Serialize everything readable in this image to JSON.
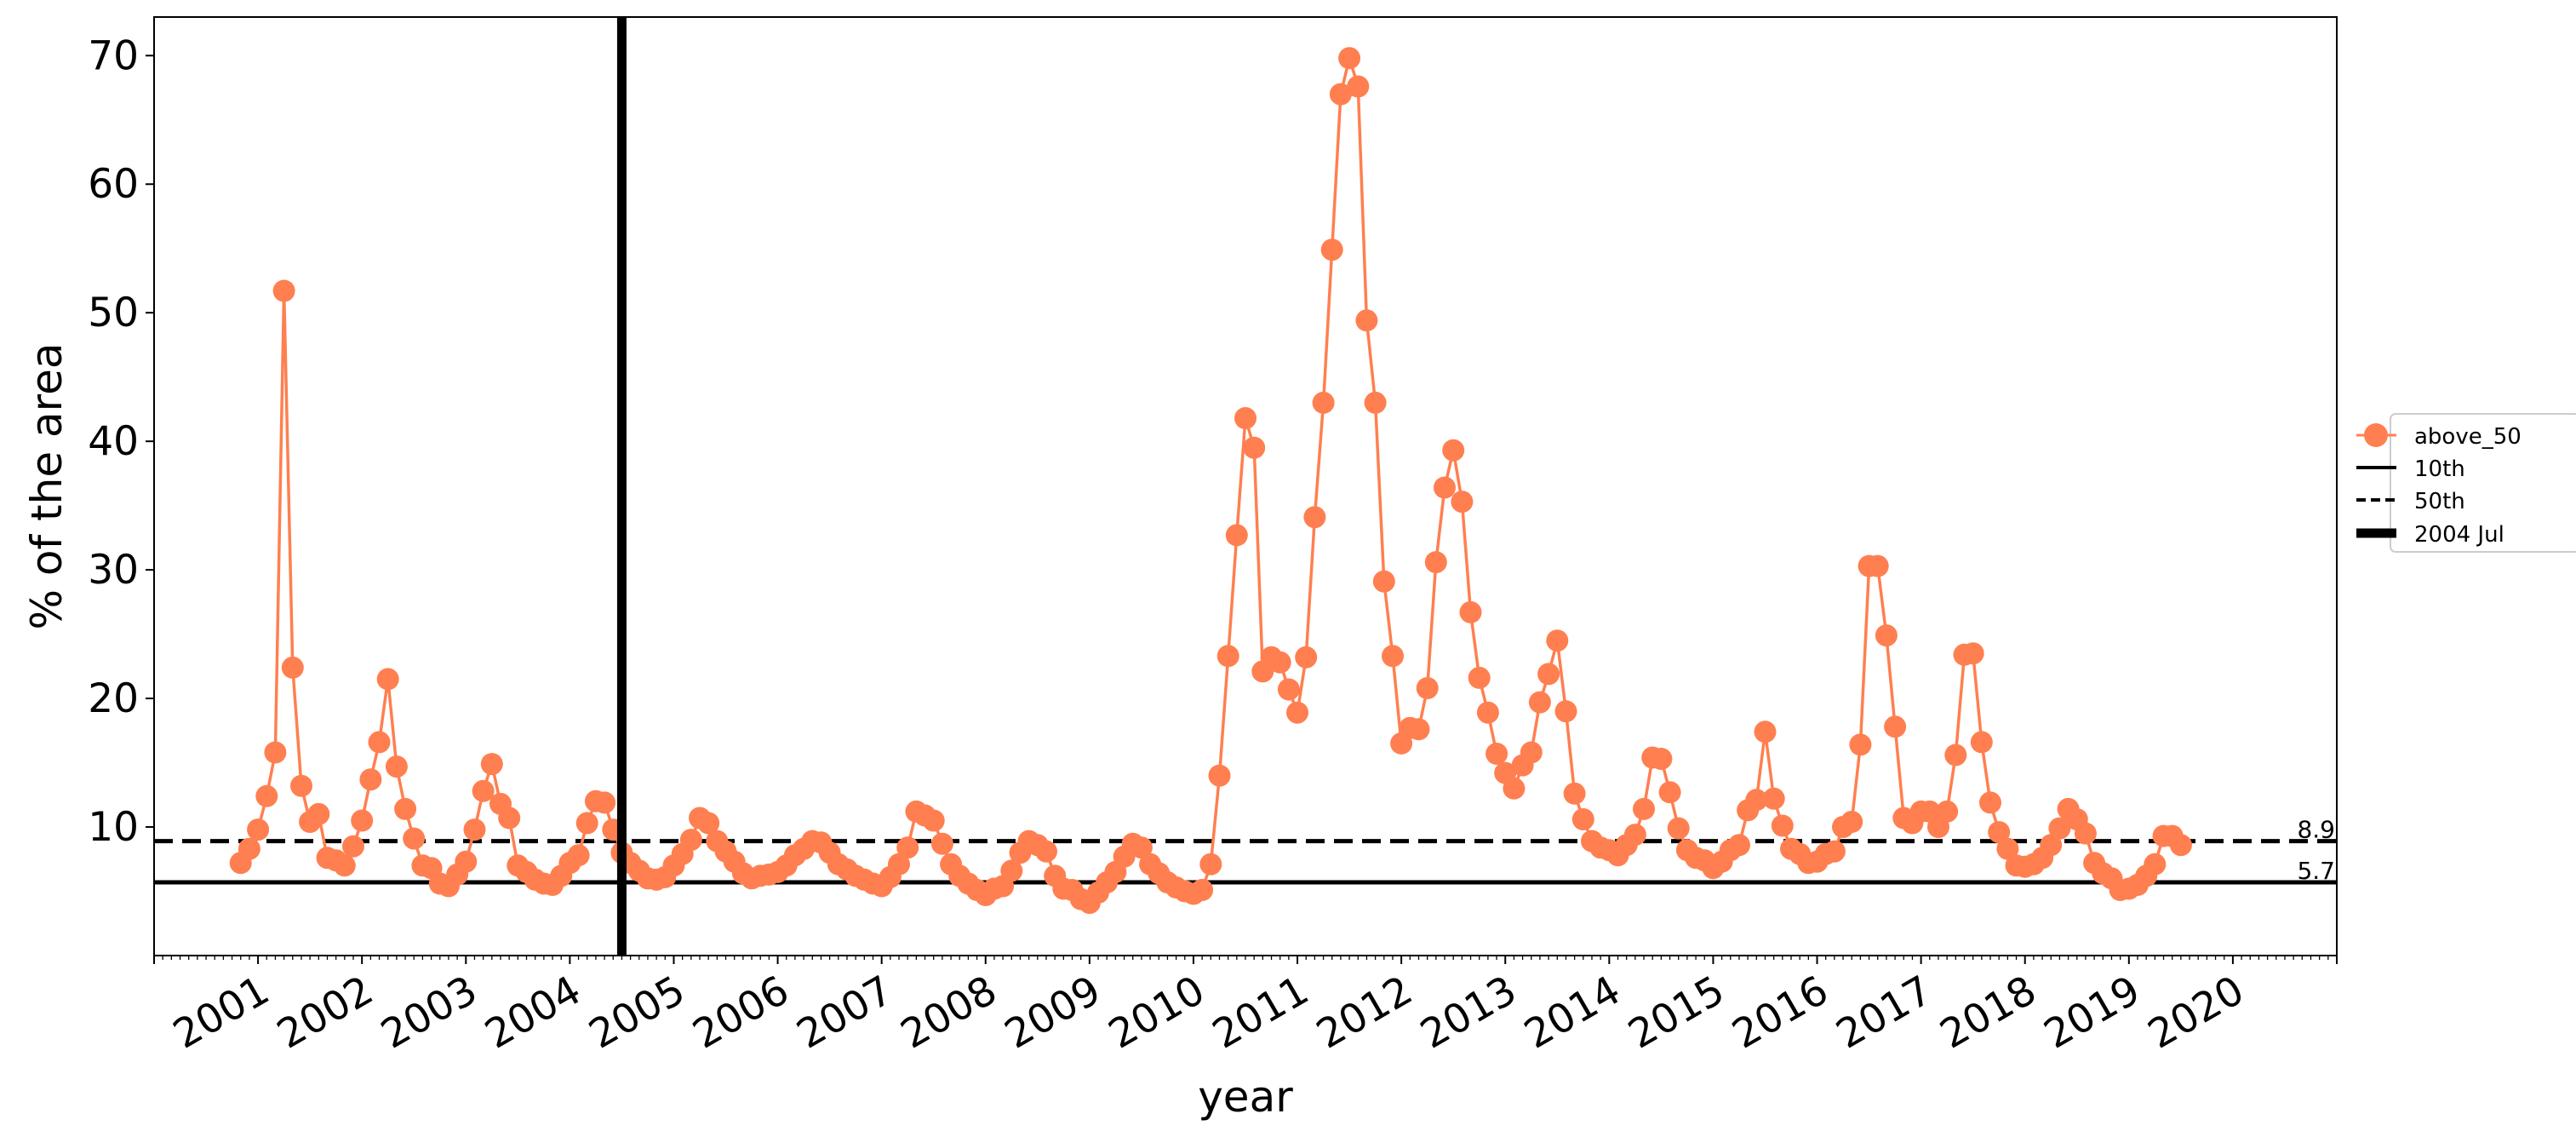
{
  "chart_data": {
    "type": "line",
    "title": "",
    "xlabel": "year",
    "ylabel": "% of the area",
    "x_tick_labels": [
      "2001",
      "2002",
      "2003",
      "2004",
      "2005",
      "2006",
      "2007",
      "2008",
      "2009",
      "2010",
      "2011",
      "2012",
      "2013",
      "2014",
      "2015",
      "2016",
      "2017",
      "2018",
      "2019",
      "2020"
    ],
    "y_tick_labels": [
      "10",
      "20",
      "30",
      "40",
      "50",
      "60",
      "70"
    ],
    "xlim": [
      "2000-01",
      "2020-12"
    ],
    "ylim": [
      0,
      73
    ],
    "grid": false,
    "legend_position": "right",
    "series": [
      {
        "name": "above_50",
        "color": "#FF7F50",
        "marker": "circle",
        "x_start": "2000-11",
        "x_step_months": 1,
        "values": [
          7.2,
          8.3,
          9.8,
          12.4,
          15.8,
          51.7,
          22.4,
          13.2,
          10.4,
          11.0,
          7.6,
          7.4,
          7.0,
          8.5,
          10.5,
          13.7,
          16.6,
          21.5,
          14.7,
          11.4,
          9.1,
          7.0,
          6.8,
          5.6,
          5.4,
          6.3,
          7.3,
          9.8,
          12.8,
          14.9,
          11.8,
          10.7,
          7.0,
          6.5,
          5.9,
          5.6,
          5.5,
          6.2,
          7.2,
          7.8,
          10.3,
          12.0,
          11.9,
          9.8,
          8.0,
          7.2,
          6.6,
          6.0,
          5.9,
          6.1,
          7.0,
          7.9,
          9.0,
          10.7,
          10.3,
          8.9,
          8.1,
          7.3,
          6.4,
          6.0,
          6.2,
          6.3,
          6.5,
          7.0,
          7.8,
          8.3,
          8.9,
          8.8,
          8.0,
          7.1,
          6.7,
          6.2,
          5.9,
          5.6,
          5.4,
          6.1,
          7.1,
          8.4,
          11.2,
          10.9,
          10.5,
          8.7,
          7.1,
          6.2,
          5.6,
          5.1,
          4.7,
          5.2,
          5.4,
          6.6,
          8.0,
          8.9,
          8.6,
          8.1,
          6.2,
          5.2,
          5.1,
          4.4,
          4.1,
          4.9,
          5.7,
          6.5,
          7.7,
          8.7,
          8.4,
          7.1,
          6.4,
          5.7,
          5.3,
          5.0,
          4.8,
          5.1,
          7.1,
          14.0,
          23.3,
          32.7,
          41.8,
          39.5,
          22.1,
          23.2,
          22.8,
          20.7,
          18.9,
          23.2,
          34.1,
          43.0,
          54.9,
          67.0,
          69.8,
          67.6,
          49.4,
          43.0,
          29.1,
          23.3,
          16.5,
          17.7,
          17.6,
          20.8,
          30.6,
          36.4,
          39.3,
          35.3,
          26.7,
          21.6,
          18.9,
          15.7,
          14.2,
          13.0,
          14.8,
          15.8,
          19.7,
          21.9,
          24.5,
          19.0,
          12.6,
          10.6,
          8.9,
          8.4,
          8.2,
          7.8,
          8.6,
          9.4,
          11.4,
          15.4,
          15.3,
          12.7,
          9.9,
          8.2,
          7.6,
          7.4,
          6.8,
          7.3,
          8.2,
          8.6,
          11.3,
          12.1,
          17.4,
          12.2,
          10.1,
          8.3,
          7.9,
          7.2,
          7.3,
          7.9,
          8.1,
          10.0,
          10.4,
          16.4,
          30.3,
          30.3,
          24.9,
          17.8,
          10.7,
          10.3,
          11.2,
          11.2,
          10.0,
          11.2,
          15.6,
          23.4,
          23.5,
          16.6,
          11.9,
          9.6,
          8.3,
          7.0,
          6.9,
          7.1,
          7.6,
          8.6,
          9.9,
          11.4,
          10.6,
          9.5,
          7.2,
          6.4,
          6.0,
          5.1,
          5.2,
          5.5,
          6.2,
          7.1,
          9.3,
          9.3,
          8.6
        ]
      }
    ],
    "reference_lines": [
      {
        "name": "10th",
        "value": 5.7,
        "label": "5.7",
        "style": "solid",
        "color": "#000000"
      },
      {
        "name": "50th",
        "value": 8.9,
        "label": "8.9",
        "style": "dashed",
        "color": "#000000"
      }
    ],
    "vertical_lines": [
      {
        "name": "2004 Jul",
        "x": "2004-07",
        "style": "solid-thick",
        "color": "#000000"
      }
    ],
    "legend": [
      "above_50",
      "10th",
      "50th",
      "2004 Jul"
    ]
  }
}
